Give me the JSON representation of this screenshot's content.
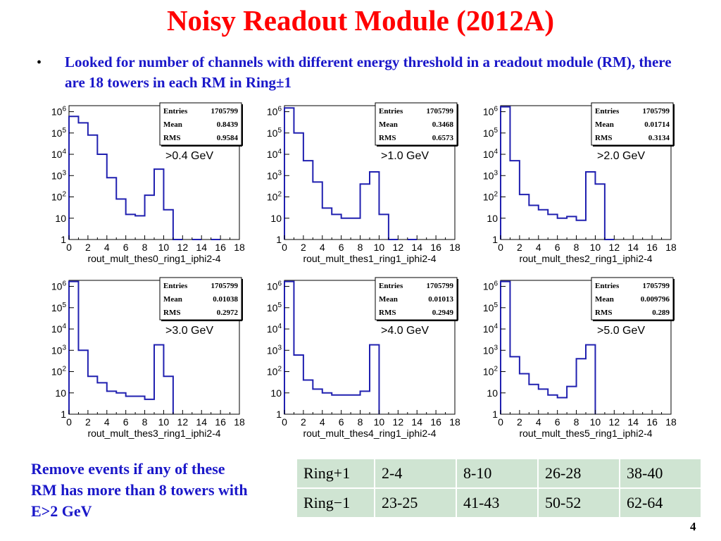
{
  "title": "Noisy Readout Module (2012A)",
  "bullet": "•",
  "bullet_text": "Looked for number of channels with different energy threshold in a readout module (RM), there are 18 towers in each RM in Ring±1",
  "note": "Remove events if any of these RM has more than 8 towers with E>2 GeV",
  "page_number": "4",
  "colors": {
    "title": "#ff0000",
    "blue_text": "#1a17c9",
    "histogram_line": "#2020b0",
    "table_bg": "#cfe4d2"
  },
  "table": {
    "rows": [
      {
        "label": "Ring+1",
        "cells": [
          "2-4",
          "8-10",
          "26-28",
          "38-40"
        ]
      },
      {
        "label": "Ring−1",
        "cells": [
          "23-25",
          "41-43",
          "50-52",
          "62-64"
        ]
      }
    ]
  },
  "stat_labels": {
    "entries": "Entries",
    "mean": "Mean",
    "rms": "RMS"
  },
  "chart_data": [
    {
      "type": "histogram",
      "log_y": true,
      "xlim": [
        0,
        18
      ],
      "ylim": [
        1,
        1000000
      ],
      "x_ticks": [
        "0",
        "2",
        "4",
        "6",
        "8",
        "10",
        "12",
        "14",
        "16",
        "18"
      ],
      "y_ticks": [
        "1",
        "10",
        "10²",
        "10³",
        "10⁴",
        "10⁵",
        "10⁶"
      ],
      "xlabel": "rout_mult_thes0_ring1_iphi2-4",
      "label": ">0.4 GeV",
      "stats": {
        "entries": "1705799",
        "mean": "0.8439",
        "rms": "0.9584"
      },
      "bin_edges": [
        0,
        1,
        2,
        3,
        4,
        5,
        6,
        7,
        8,
        9,
        10,
        11,
        12,
        13,
        14,
        15,
        16,
        17,
        18
      ],
      "counts": [
        600000,
        300000,
        80000,
        10000,
        800,
        80,
        15,
        13,
        120,
        2000,
        25,
        1,
        0,
        1,
        0,
        1,
        0,
        0
      ]
    },
    {
      "type": "histogram",
      "log_y": true,
      "xlim": [
        0,
        18
      ],
      "ylim": [
        1,
        1000000
      ],
      "x_ticks": [
        "0",
        "2",
        "4",
        "6",
        "8",
        "10",
        "12",
        "14",
        "16",
        "18"
      ],
      "y_ticks": [
        "1",
        "10",
        "10²",
        "10³",
        "10⁴",
        "10⁵",
        "10⁶"
      ],
      "xlabel": "rout_mult_thes1_ring1_iphi2-4",
      "label": ">1.0 GeV",
      "stats": {
        "entries": "1705799",
        "mean": "0.3468",
        "rms": "0.6573"
      },
      "bin_edges": [
        0,
        1,
        2,
        3,
        4,
        5,
        6,
        7,
        8,
        9,
        10,
        11,
        12,
        13,
        14,
        15,
        16,
        17,
        18
      ],
      "counts": [
        1500000,
        100000,
        5000,
        500,
        30,
        15,
        10,
        10,
        400,
        1500,
        15,
        1,
        0,
        1,
        0,
        0,
        0,
        0
      ]
    },
    {
      "type": "histogram",
      "log_y": true,
      "xlim": [
        0,
        18
      ],
      "ylim": [
        1,
        1000000
      ],
      "x_ticks": [
        "0",
        "2",
        "4",
        "6",
        "8",
        "10",
        "12",
        "14",
        "16",
        "18"
      ],
      "y_ticks": [
        "1",
        "10",
        "10²",
        "10³",
        "10⁴",
        "10⁵",
        "10⁶"
      ],
      "xlabel": "rout_mult_thes2_ring1_iphi2-4",
      "label": ">2.0 GeV",
      "stats": {
        "entries": "1705799",
        "mean": "0.01714",
        "rms": "0.3134"
      },
      "bin_edges": [
        0,
        1,
        2,
        3,
        4,
        5,
        6,
        7,
        8,
        9,
        10,
        11,
        12,
        13,
        14,
        15,
        16,
        17,
        18
      ],
      "counts": [
        1700000,
        5000,
        130,
        40,
        25,
        15,
        10,
        12,
        8,
        1500,
        400,
        1,
        0,
        0,
        0,
        0,
        0,
        0
      ]
    },
    {
      "type": "histogram",
      "log_y": true,
      "xlim": [
        0,
        18
      ],
      "ylim": [
        1,
        1000000
      ],
      "x_ticks": [
        "0",
        "2",
        "4",
        "6",
        "8",
        "10",
        "12",
        "14",
        "16",
        "18"
      ],
      "y_ticks": [
        "1",
        "10",
        "10²",
        "10³",
        "10⁴",
        "10⁵",
        "10⁶"
      ],
      "xlabel": "rout_mult_thes3_ring1_iphi2-4",
      "label": ">3.0 GeV",
      "stats": {
        "entries": "1705799",
        "mean": "0.01038",
        "rms": "0.2972"
      },
      "bin_edges": [
        0,
        1,
        2,
        3,
        4,
        5,
        6,
        7,
        8,
        9,
        10,
        11,
        12,
        13,
        14,
        15,
        16,
        17,
        18
      ],
      "counts": [
        1700000,
        1000,
        60,
        30,
        12,
        10,
        7,
        7,
        5,
        1800,
        60,
        0,
        0,
        0,
        0,
        0,
        0,
        0
      ]
    },
    {
      "type": "histogram",
      "log_y": true,
      "xlim": [
        0,
        18
      ],
      "ylim": [
        1,
        1000000
      ],
      "x_ticks": [
        "0",
        "2",
        "4",
        "6",
        "8",
        "10",
        "12",
        "14",
        "16",
        "18"
      ],
      "y_ticks": [
        "1",
        "10",
        "10²",
        "10³",
        "10⁴",
        "10⁵",
        "10⁶"
      ],
      "xlabel": "rout_mult_thes4_ring1_iphi2-4",
      "label": ">4.0 GeV",
      "stats": {
        "entries": "1705799",
        "mean": "0.01013",
        "rms": "0.2949"
      },
      "bin_edges": [
        0,
        1,
        2,
        3,
        4,
        5,
        6,
        7,
        8,
        9,
        10,
        11,
        12,
        13,
        14,
        15,
        16,
        17,
        18
      ],
      "counts": [
        1700000,
        600,
        40,
        15,
        10,
        8,
        8,
        8,
        12,
        1800,
        0,
        0,
        0,
        0,
        0,
        0,
        0,
        0
      ]
    },
    {
      "type": "histogram",
      "log_y": true,
      "xlim": [
        0,
        18
      ],
      "ylim": [
        1,
        1000000
      ],
      "x_ticks": [
        "0",
        "2",
        "4",
        "6",
        "8",
        "10",
        "12",
        "14",
        "16",
        "18"
      ],
      "y_ticks": [
        "1",
        "10",
        "10²",
        "10³",
        "10⁴",
        "10⁵",
        "10⁶"
      ],
      "xlabel": "rout_mult_thes5_ring1_iphi2-4",
      "label": ">5.0 GeV",
      "stats": {
        "entries": "1705799",
        "mean": "0.009796",
        "rms": "0.289"
      },
      "bin_edges": [
        0,
        1,
        2,
        3,
        4,
        5,
        6,
        7,
        8,
        9,
        10,
        11,
        12,
        13,
        14,
        15,
        16,
        17,
        18
      ],
      "counts": [
        1700000,
        500,
        80,
        25,
        15,
        8,
        6,
        20,
        400,
        1800,
        0,
        0,
        0,
        0,
        0,
        0,
        0,
        0
      ]
    }
  ]
}
